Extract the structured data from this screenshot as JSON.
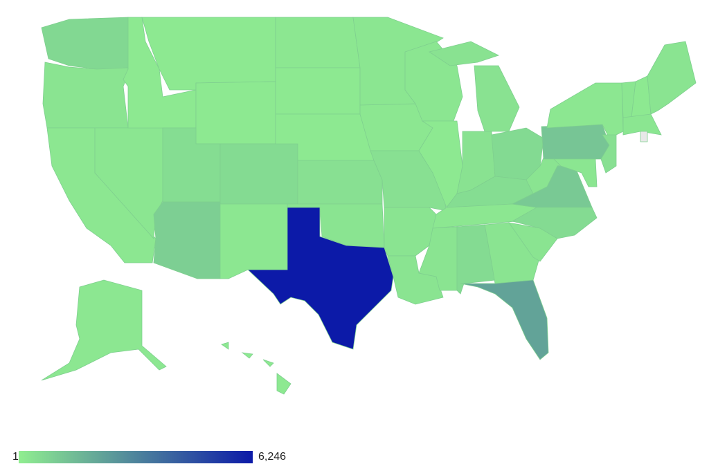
{
  "map": {
    "type": "choropleth",
    "legend": {
      "min": {
        "value": 1,
        "label": "1"
      },
      "max": {
        "value": 6246,
        "label": "6,246"
      },
      "colors": [
        "#90ee90",
        "#0c1aa8"
      ]
    },
    "no_data_color": "#e8e8e8",
    "regions": [
      650,
      300,
      200,
      250,
      150,
      150,
      150,
      500,
      550,
      900,
      200,
      200,
      150,
      150,
      400,
      300,
      6246,
      250,
      200,
      400,
      300,
      300,
      250,
      150,
      350,
      350,
      600,
      500,
      200,
      300,
      550,
      300,
      2200,
      300,
      550,
      1100,
      300,
      1200,
      200,
      400,
      250,
      250,
      150,
      300,
      250,
      null,
      200,
      150
    ]
  }
}
